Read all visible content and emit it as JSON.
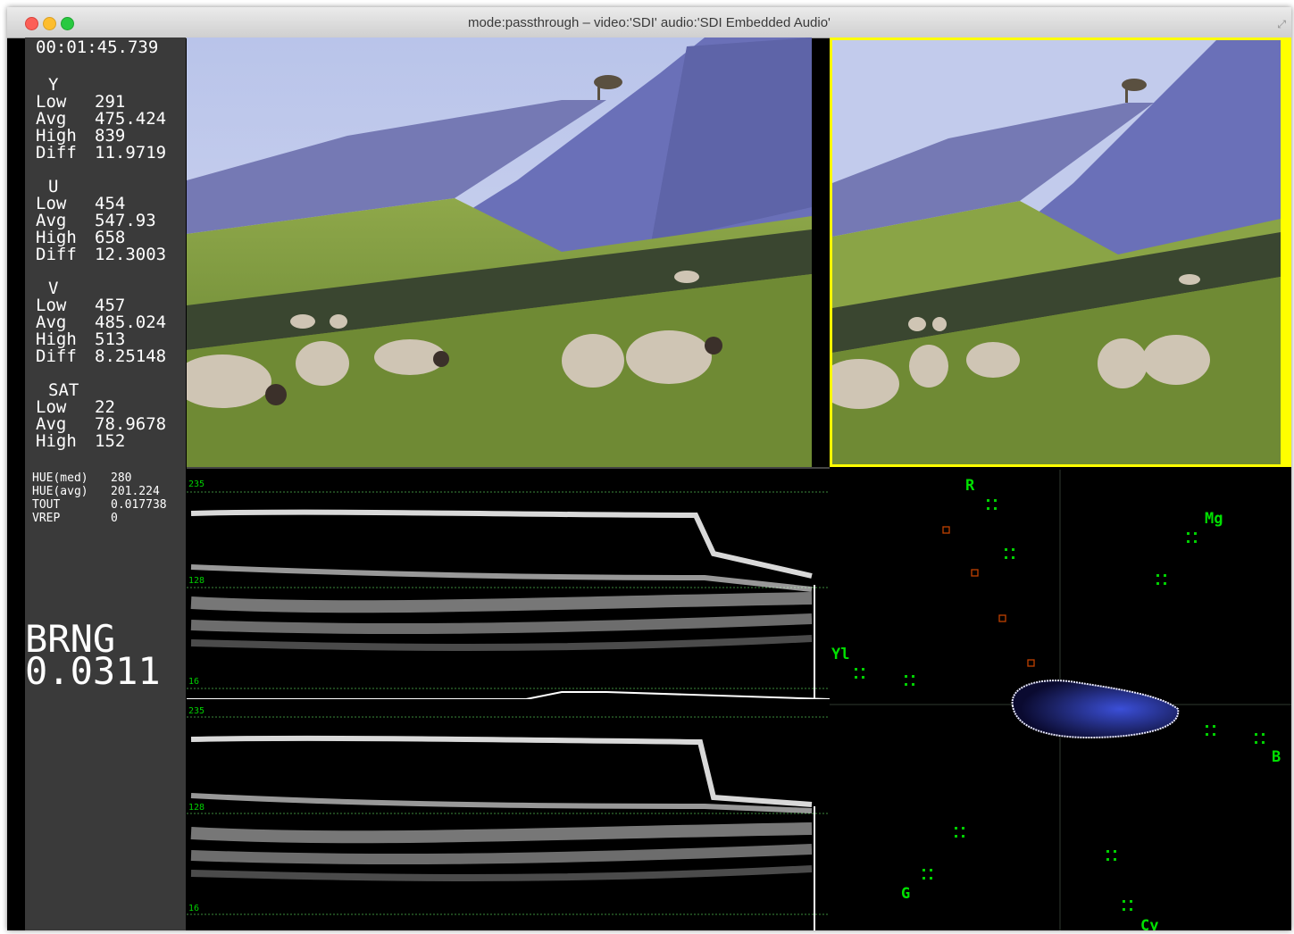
{
  "window": {
    "title": "mode:passthrough – video:'SDI' audio:'SDI Embedded Audio'"
  },
  "stats": {
    "timecode": "00:01:45.739",
    "groups": [
      {
        "name": "Y",
        "rows": [
          {
            "label": "Low",
            "value": "291"
          },
          {
            "label": "Avg",
            "value": "475.424"
          },
          {
            "label": "High",
            "value": "839"
          },
          {
            "label": "Diff",
            "value": "11.9719"
          }
        ]
      },
      {
        "name": "U",
        "rows": [
          {
            "label": "Low",
            "value": "454"
          },
          {
            "label": "Avg",
            "value": "547.93"
          },
          {
            "label": "High",
            "value": "658"
          },
          {
            "label": "Diff",
            "value": "12.3003"
          }
        ]
      },
      {
        "name": "V",
        "rows": [
          {
            "label": "Low",
            "value": "457"
          },
          {
            "label": "Avg",
            "value": "485.024"
          },
          {
            "label": "High",
            "value": "513"
          },
          {
            "label": "Diff",
            "value": "8.25148"
          }
        ]
      },
      {
        "name": "SAT",
        "rows": [
          {
            "label": "Low",
            "value": "22"
          },
          {
            "label": "Avg",
            "value": "78.9678"
          },
          {
            "label": "High",
            "value": "152"
          }
        ]
      }
    ],
    "extra": [
      {
        "label": "HUE(med)",
        "value": "280"
      },
      {
        "label": "HUE(avg)",
        "value": "201.224"
      },
      {
        "label": "TOUT",
        "value": "0.017738"
      },
      {
        "label": "VREP",
        "value": "0"
      }
    ],
    "brng_label": "BRNG",
    "brng_value": "0.0311"
  },
  "waveforms": [
    {
      "markers": [
        "235",
        "128",
        "16"
      ]
    },
    {
      "markers": [
        "235",
        "128",
        "16"
      ]
    }
  ],
  "vectorscope": {
    "labels": {
      "r": "R",
      "mg": "Mg",
      "yl": "Yl",
      "b": "B",
      "g": "G",
      "cy": "Cy"
    }
  },
  "colors": {
    "highlight_border": "#ffff00",
    "scope_green": "#00e000",
    "marker_red": "#c04000"
  }
}
